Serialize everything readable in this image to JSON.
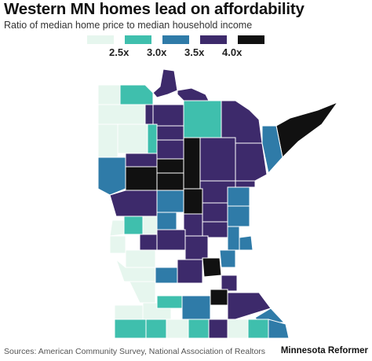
{
  "title": "Western MN homes lead on affordability",
  "subtitle": "Ratio of median home price to median household income",
  "legend": {
    "labels": [
      "2.5x",
      "3.0x",
      "3.5x",
      "4.0x"
    ],
    "colors": [
      "#e6f6ee",
      "#3fbfad",
      "#2f7ba8",
      "#3d2a6b",
      "#111111"
    ]
  },
  "footer": {
    "source": "Sources: American Community Survey, National Association of Realtors",
    "brand": "Minnesota Reformer"
  },
  "map": {
    "state": "Minnesota",
    "border_color": "#ffffff",
    "counties": [
      {
        "ratio_class": 0
      },
      {
        "ratio_class": 1
      },
      {
        "ratio_class": 3
      },
      {
        "ratio_class": 3
      },
      {
        "ratio_class": 1
      },
      {
        "ratio_class": 3
      },
      {
        "ratio_class": 3
      },
      {
        "ratio_class": 4
      },
      {
        "ratio_class": 0
      },
      {
        "ratio_class": 0
      },
      {
        "ratio_class": 3
      },
      {
        "ratio_class": 3
      },
      {
        "ratio_class": 3
      },
      {
        "ratio_class": 2
      },
      {
        "ratio_class": 0
      },
      {
        "ratio_class": 1
      },
      {
        "ratio_class": 3
      },
      {
        "ratio_class": 4
      },
      {
        "ratio_class": 4
      },
      {
        "ratio_class": 3
      },
      {
        "ratio_class": 3
      },
      {
        "ratio_class": 2
      },
      {
        "ratio_class": 4
      },
      {
        "ratio_class": 3
      },
      {
        "ratio_class": 4
      },
      {
        "ratio_class": 4
      },
      {
        "ratio_class": 3
      },
      {
        "ratio_class": 2
      },
      {
        "ratio_class": 3
      },
      {
        "ratio_class": 3
      },
      {
        "ratio_class": 2
      },
      {
        "ratio_class": 3
      },
      {
        "ratio_class": 2
      },
      {
        "ratio_class": 0
      },
      {
        "ratio_class": 1
      },
      {
        "ratio_class": 0
      },
      {
        "ratio_class": 3
      },
      {
        "ratio_class": 2
      },
      {
        "ratio_class": 3
      },
      {
        "ratio_class": 3
      },
      {
        "ratio_class": 0
      },
      {
        "ratio_class": 0
      },
      {
        "ratio_class": 3
      },
      {
        "ratio_class": 2
      },
      {
        "ratio_class": 4
      },
      {
        "ratio_class": 2
      },
      {
        "ratio_class": 0
      },
      {
        "ratio_class": 0
      },
      {
        "ratio_class": 2
      },
      {
        "ratio_class": 3
      },
      {
        "ratio_class": 3
      },
      {
        "ratio_class": 4
      },
      {
        "ratio_class": 0
      },
      {
        "ratio_class": 1
      },
      {
        "ratio_class": 0
      },
      {
        "ratio_class": 2
      },
      {
        "ratio_class": 3
      },
      {
        "ratio_class": 2
      },
      {
        "ratio_class": 1
      },
      {
        "ratio_class": 1
      },
      {
        "ratio_class": 0
      },
      {
        "ratio_class": 1
      },
      {
        "ratio_class": 3
      },
      {
        "ratio_class": 0
      },
      {
        "ratio_class": 1
      },
      {
        "ratio_class": 2
      },
      {
        "ratio_class": 2
      }
    ]
  }
}
